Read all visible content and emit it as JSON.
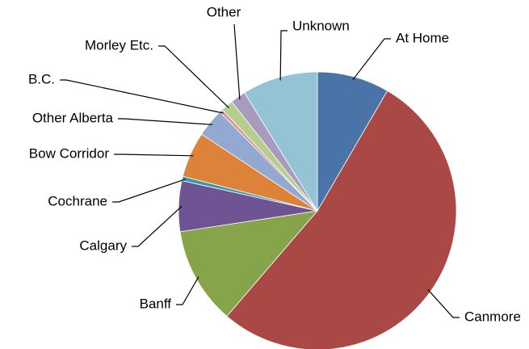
{
  "chart_data": {
    "type": "pie",
    "categories": [
      "At Home",
      "Canmore",
      "Banff",
      "Calgary",
      "Cochrane",
      "Bow Corridor",
      "Other Alberta",
      "B.C.",
      "Morley Etc.",
      "Other",
      "Unknown"
    ],
    "values": [
      8.4,
      52.9,
      11.3,
      5.9,
      0.5,
      5.3,
      3.3,
      0.4,
      1.4,
      1.8,
      8.8
    ],
    "colors": [
      "#4a73a8",
      "#a94845",
      "#86a54a",
      "#6f5493",
      "#3c97ae",
      "#dc8239",
      "#93a9d1",
      "#d99694",
      "#b5ce8e",
      "#a99bbd",
      "#93c3d4"
    ]
  }
}
